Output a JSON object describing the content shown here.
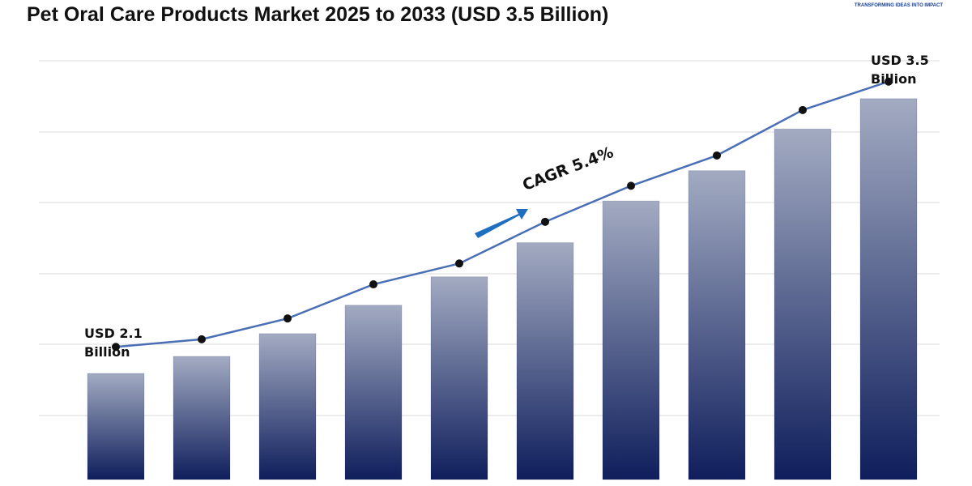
{
  "logo": {
    "tagline": "TRANSFORMING IDEAS INTO IMPACT"
  },
  "chart_data": {
    "type": "bar",
    "title": "Pet Oral Care Products Market 2025 to 2033 (USD 3.5 Billion)",
    "ylim": [
      1.4,
      3.61
    ],
    "series": [
      {
        "type": "bar",
        "color": "#0f1e5c",
        "values": [
          1.96,
          2.05,
          2.17,
          2.32,
          2.47,
          2.65,
          2.87,
          3.03,
          3.25,
          3.41
        ]
      },
      {
        "type": "line",
        "color": "#4a6fb5",
        "values": [
          2.1,
          2.14,
          2.25,
          2.43,
          2.54,
          2.76,
          2.95,
          3.11,
          3.35,
          3.5
        ]
      }
    ],
    "annotations": [
      "USD 2.1 Billion",
      "USD 3.5 Billion",
      "CAGR 5.4%"
    ]
  }
}
